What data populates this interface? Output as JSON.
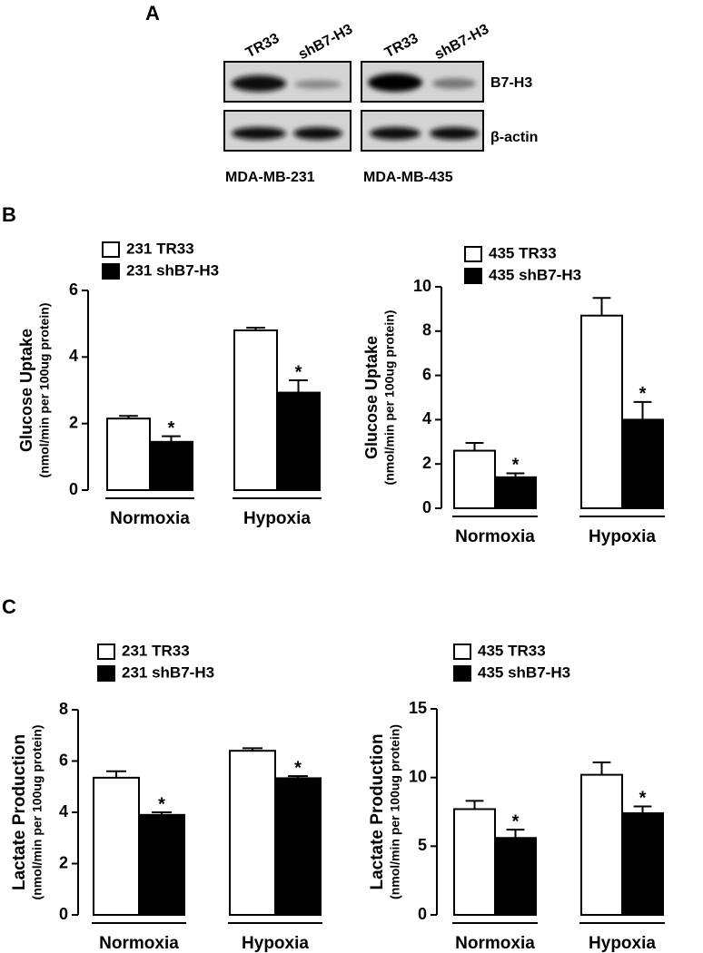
{
  "panel_labels": [
    "A",
    "B",
    "C"
  ],
  "blot": {
    "lanes": [
      "TR33",
      "shB7-H3",
      "TR33",
      "shB7-H3"
    ],
    "rows": [
      "B7-H3",
      "β-actin"
    ],
    "cell_lines": [
      "MDA-MB-231",
      "MDA-MB-435"
    ]
  },
  "chart_data": [
    {
      "type": "bar",
      "ylabel": [
        "Glucose Uptake",
        "(nmol/min per 100ug protein)"
      ],
      "categories": [
        "Normoxia",
        "Hypoxia"
      ],
      "series": [
        {
          "name": "231 TR33",
          "color": "#ffffff",
          "values": [
            2.15,
            4.8
          ],
          "errors": [
            0.08,
            0.08
          ]
        },
        {
          "name": "231 shB7-H3",
          "color": "#000000",
          "values": [
            1.45,
            2.93
          ],
          "errors": [
            0.17,
            0.37
          ],
          "markers": [
            "*",
            "*"
          ]
        }
      ],
      "ylim": [
        0,
        6
      ],
      "yticks": [
        0,
        2,
        4,
        6
      ]
    },
    {
      "type": "bar",
      "ylabel": [
        "Glucose Uptake",
        "(nmol/min per 100ug protein)"
      ],
      "categories": [
        "Normoxia",
        "Hypoxia"
      ],
      "series": [
        {
          "name": "435 TR33",
          "color": "#ffffff",
          "values": [
            2.6,
            8.7
          ],
          "errors": [
            0.35,
            0.8
          ]
        },
        {
          "name": "435 shB7-H3",
          "color": "#000000",
          "values": [
            1.4,
            4.0
          ],
          "errors": [
            0.18,
            0.8
          ],
          "markers": [
            "*",
            "*"
          ]
        }
      ],
      "ylim": [
        0,
        10
      ],
      "yticks": [
        0,
        2,
        4,
        6,
        8,
        10
      ]
    },
    {
      "type": "bar",
      "ylabel": [
        "Lactate Production",
        "(nmol/min per 100ug protein)"
      ],
      "categories": [
        "Normoxia",
        "Hypoxia"
      ],
      "series": [
        {
          "name": "231 TR33",
          "color": "#ffffff",
          "values": [
            5.35,
            6.4
          ],
          "errors": [
            0.25,
            0.1
          ]
        },
        {
          "name": "231 shB7-H3",
          "color": "#000000",
          "values": [
            3.9,
            5.33
          ],
          "errors": [
            0.1,
            0.08
          ],
          "markers": [
            "*",
            "*"
          ]
        }
      ],
      "ylim": [
        0,
        8
      ],
      "yticks": [
        0,
        2,
        4,
        6,
        8
      ]
    },
    {
      "type": "bar",
      "ylabel": [
        "Lactate Production",
        "(nmol/min per 100ug protein)"
      ],
      "categories": [
        "Normoxia",
        "Hypoxia"
      ],
      "series": [
        {
          "name": "435 TR33",
          "color": "#ffffff",
          "values": [
            7.7,
            10.2
          ],
          "errors": [
            0.6,
            0.9
          ]
        },
        {
          "name": "435 shB7-H3",
          "color": "#000000",
          "values": [
            5.6,
            7.4
          ],
          "errors": [
            0.6,
            0.5
          ],
          "markers": [
            "*",
            "*"
          ]
        }
      ],
      "ylim": [
        0,
        15
      ],
      "yticks": [
        0,
        5,
        10,
        15
      ]
    }
  ]
}
